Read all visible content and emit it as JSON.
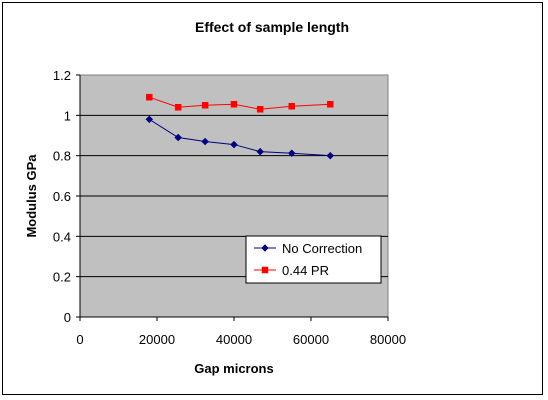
{
  "chart_data": {
    "type": "line",
    "title": "Effect of sample length",
    "xlabel": "Gap microns",
    "ylabel": "Modulus GPa",
    "xlim": [
      0,
      80000
    ],
    "ylim": [
      0,
      1.2
    ],
    "x_ticks": [
      "0",
      "20000",
      "40000",
      "60000",
      "80000"
    ],
    "y_ticks": [
      "0",
      "0.2",
      "0.4",
      "0.6",
      "0.8",
      "1",
      "1.2"
    ],
    "x_tick_values": [
      0,
      20000,
      40000,
      60000,
      80000
    ],
    "y_tick_values": [
      0,
      0.2,
      0.4,
      0.6,
      0.8,
      1.0,
      1.2
    ],
    "grid": "horizontal",
    "plot_background": "#c0c0c0",
    "legend_position": "lower-right inside plot",
    "series": [
      {
        "name": "No Correction",
        "color": "#000080",
        "marker": "diamond",
        "points": [
          {
            "x": 18000,
            "y": 0.98
          },
          {
            "x": 25500,
            "y": 0.89
          },
          {
            "x": 32500,
            "y": 0.87
          },
          {
            "x": 40000,
            "y": 0.855
          },
          {
            "x": 46800,
            "y": 0.82
          },
          {
            "x": 55000,
            "y": 0.812
          },
          {
            "x": 65000,
            "y": 0.8
          }
        ]
      },
      {
        "name": "0.44 PR",
        "color": "#ff0000",
        "marker": "square",
        "points": [
          {
            "x": 18000,
            "y": 1.09
          },
          {
            "x": 25500,
            "y": 1.04
          },
          {
            "x": 32500,
            "y": 1.05
          },
          {
            "x": 40000,
            "y": 1.055
          },
          {
            "x": 46800,
            "y": 1.03
          },
          {
            "x": 55000,
            "y": 1.045
          },
          {
            "x": 65000,
            "y": 1.055
          }
        ]
      }
    ]
  }
}
